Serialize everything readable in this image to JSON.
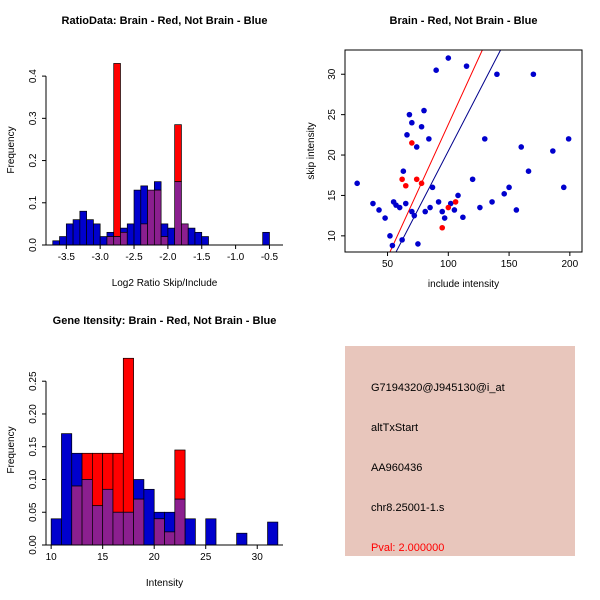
{
  "colors": {
    "hist_blue": "#0000cd",
    "hist_red": "#ff0000",
    "hist_overlap": "#8b1f8f",
    "point_blue": "#0000cd",
    "point_red": "#ff0000",
    "line_red": "#ff0000",
    "line_blue": "#00008b",
    "axis": "#000000",
    "info_bg": "#e8c6bc",
    "info_text": "#000000",
    "pval": "#ff0000"
  },
  "info_panel": {
    "lines": [
      {
        "id": "probe-id",
        "text": "G7194320@J945130@i_at"
      },
      {
        "id": "alt-event",
        "text": "altTxStart"
      },
      {
        "id": "accession",
        "text": "AA960436"
      },
      {
        "id": "locus",
        "text": "chr8.25001-1.s"
      }
    ],
    "pval": "Pval: 2.000000"
  },
  "chart_data": [
    {
      "type": "bar",
      "panel": "hist-ratio",
      "title": "RatioData: Brain - Red, Not Brain - Blue",
      "xlabel": "Log2 Ratio Skip/Include",
      "ylabel": "Frequency",
      "legend": {
        "red": "Brain",
        "blue": "Not Brain"
      },
      "xlim": [
        -3.8,
        -0.3
      ],
      "ylim": [
        0,
        0.45
      ],
      "xticks": [
        -3.5,
        -3.0,
        -2.5,
        -2.0,
        -1.5,
        -1.0,
        -0.5
      ],
      "xtick_labels": [
        "-3.5",
        "-3.0",
        "-2.5",
        "-2.0",
        "-1.5",
        "-1.0",
        "-0.5"
      ],
      "yticks": [
        0,
        0.1,
        0.2,
        0.3,
        0.4
      ],
      "ytick_labels": [
        "0.0",
        "0.1",
        "0.2",
        "0.3",
        "0.4"
      ],
      "bin_width": 0.1,
      "bins": [
        {
          "x": -3.7,
          "blue": 0.01,
          "red": 0
        },
        {
          "x": -3.6,
          "blue": 0.02,
          "red": 0
        },
        {
          "x": -3.5,
          "blue": 0.05,
          "red": 0
        },
        {
          "x": -3.4,
          "blue": 0.06,
          "red": 0
        },
        {
          "x": -3.3,
          "blue": 0.08,
          "red": 0
        },
        {
          "x": -3.2,
          "blue": 0.06,
          "red": 0
        },
        {
          "x": -3.1,
          "blue": 0.05,
          "red": 0
        },
        {
          "x": -3.0,
          "blue": 0.02,
          "red": 0
        },
        {
          "x": -2.9,
          "blue": 0.03,
          "red": 0.02
        },
        {
          "x": -2.8,
          "blue": 0.02,
          "red": 0.43
        },
        {
          "x": -2.7,
          "blue": 0.04,
          "red": 0.03
        },
        {
          "x": -2.6,
          "blue": 0.05,
          "red": 0
        },
        {
          "x": -2.5,
          "blue": 0.13,
          "red": 0
        },
        {
          "x": -2.4,
          "blue": 0.14,
          "red": 0.05
        },
        {
          "x": -2.3,
          "blue": 0.13,
          "red": 0.13
        },
        {
          "x": -2.2,
          "blue": 0.15,
          "red": 0.13
        },
        {
          "x": -2.1,
          "blue": 0.05,
          "red": 0.02
        },
        {
          "x": -2.0,
          "blue": 0.04,
          "red": 0
        },
        {
          "x": -1.9,
          "blue": 0.15,
          "red": 0.285
        },
        {
          "x": -1.8,
          "blue": 0.05,
          "red": 0.05
        },
        {
          "x": -1.7,
          "blue": 0.04,
          "red": 0
        },
        {
          "x": -1.6,
          "blue": 0.03,
          "red": 0
        },
        {
          "x": -1.5,
          "blue": 0.02,
          "red": 0
        },
        {
          "x": -0.6,
          "blue": 0.03,
          "red": 0
        }
      ]
    },
    {
      "type": "scatter",
      "panel": "scatter",
      "title": "Brain - Red, Not Brain - Blue",
      "xlabel": "include intensity",
      "ylabel": "skip intensity",
      "legend": {
        "red": "Brain",
        "blue": "Not Brain"
      },
      "xlim": [
        15,
        210
      ],
      "ylim": [
        8,
        33
      ],
      "xticks": [
        50,
        100,
        150,
        200
      ],
      "xtick_labels": [
        "50",
        "100",
        "150",
        "200"
      ],
      "yticks": [
        10,
        15,
        20,
        25,
        30
      ],
      "ytick_labels": [
        "10",
        "15",
        "20",
        "25",
        "30"
      ],
      "blue_points": [
        [
          25,
          16.5
        ],
        [
          38,
          14
        ],
        [
          43,
          13.2
        ],
        [
          48,
          12.2
        ],
        [
          52,
          10
        ],
        [
          54,
          8.8
        ],
        [
          55,
          14.2
        ],
        [
          57,
          13.8
        ],
        [
          60,
          13.5
        ],
        [
          62,
          9.5
        ],
        [
          63,
          18
        ],
        [
          65,
          14
        ],
        [
          66,
          22.5
        ],
        [
          68,
          25
        ],
        [
          70,
          24
        ],
        [
          70,
          13
        ],
        [
          72,
          12.5
        ],
        [
          74,
          21
        ],
        [
          75,
          9
        ],
        [
          78,
          23.5
        ],
        [
          80,
          25.5
        ],
        [
          81,
          13
        ],
        [
          84,
          22
        ],
        [
          85,
          13.5
        ],
        [
          87,
          16
        ],
        [
          90,
          30.5
        ],
        [
          92,
          14.2
        ],
        [
          95,
          13
        ],
        [
          97,
          12.2
        ],
        [
          100,
          32
        ],
        [
          102,
          14
        ],
        [
          105,
          13.2
        ],
        [
          108,
          15
        ],
        [
          112,
          12.3
        ],
        [
          115,
          31
        ],
        [
          120,
          17
        ],
        [
          126,
          13.5
        ],
        [
          130,
          22
        ],
        [
          136,
          14.2
        ],
        [
          140,
          30
        ],
        [
          146,
          15.2
        ],
        [
          150,
          16
        ],
        [
          156,
          13.2
        ],
        [
          160,
          21
        ],
        [
          166,
          18
        ],
        [
          170,
          30
        ],
        [
          186,
          20.5
        ],
        [
          195,
          16
        ],
        [
          199,
          22
        ]
      ],
      "red_points": [
        [
          62,
          17
        ],
        [
          65,
          16.2
        ],
        [
          70,
          21.5
        ],
        [
          74,
          17
        ],
        [
          78,
          16.5
        ],
        [
          95,
          11
        ],
        [
          100,
          13.5
        ],
        [
          106,
          14.2
        ]
      ],
      "lines": [
        {
          "color": "line_red",
          "name": "brain-fit-line",
          "x1": 52,
          "y1": 8,
          "x2": 128,
          "y2": 33
        },
        {
          "color": "line_blue",
          "name": "not-brain-fit-line",
          "x1": 57,
          "y1": 8,
          "x2": 143,
          "y2": 33
        }
      ]
    },
    {
      "type": "bar",
      "panel": "hist-gene",
      "title": "Gene Itensity: Brain - Red, Not Brain - Blue",
      "xlabel": "Intensity",
      "ylabel": "Frequency",
      "legend": {
        "red": "Brain",
        "blue": "Not Brain"
      },
      "xlim": [
        9.5,
        32.5
      ],
      "ylim": [
        0,
        0.29
      ],
      "xticks": [
        10,
        15,
        20,
        25,
        30
      ],
      "xtick_labels": [
        "10",
        "15",
        "20",
        "25",
        "30"
      ],
      "yticks": [
        0,
        0.05,
        0.1,
        0.15,
        0.2,
        0.25
      ],
      "ytick_labels": [
        "0.00",
        "0.05",
        "0.10",
        "0.15",
        "0.20",
        "0.25"
      ],
      "bin_width": 1,
      "bins": [
        {
          "x": 10,
          "blue": 0.04,
          "red": 0
        },
        {
          "x": 11,
          "blue": 0.17,
          "red": 0
        },
        {
          "x": 12,
          "blue": 0.14,
          "red": 0.09
        },
        {
          "x": 13,
          "blue": 0.1,
          "red": 0.14
        },
        {
          "x": 14,
          "blue": 0.06,
          "red": 0.14
        },
        {
          "x": 15,
          "blue": 0.085,
          "red": 0.14
        },
        {
          "x": 16,
          "blue": 0.05,
          "red": 0.14
        },
        {
          "x": 17,
          "blue": 0.05,
          "red": 0.285
        },
        {
          "x": 18,
          "blue": 0.1,
          "red": 0.07
        },
        {
          "x": 19,
          "blue": 0.085,
          "red": 0
        },
        {
          "x": 20,
          "blue": 0.05,
          "red": 0.04
        },
        {
          "x": 21,
          "blue": 0.05,
          "red": 0.02
        },
        {
          "x": 22,
          "blue": 0.07,
          "red": 0.145
        },
        {
          "x": 23,
          "blue": 0.04,
          "red": 0
        },
        {
          "x": 25,
          "blue": 0.04,
          "red": 0
        },
        {
          "x": 28,
          "blue": 0.018,
          "red": 0
        },
        {
          "x": 31,
          "blue": 0.035,
          "red": 0
        }
      ]
    }
  ]
}
